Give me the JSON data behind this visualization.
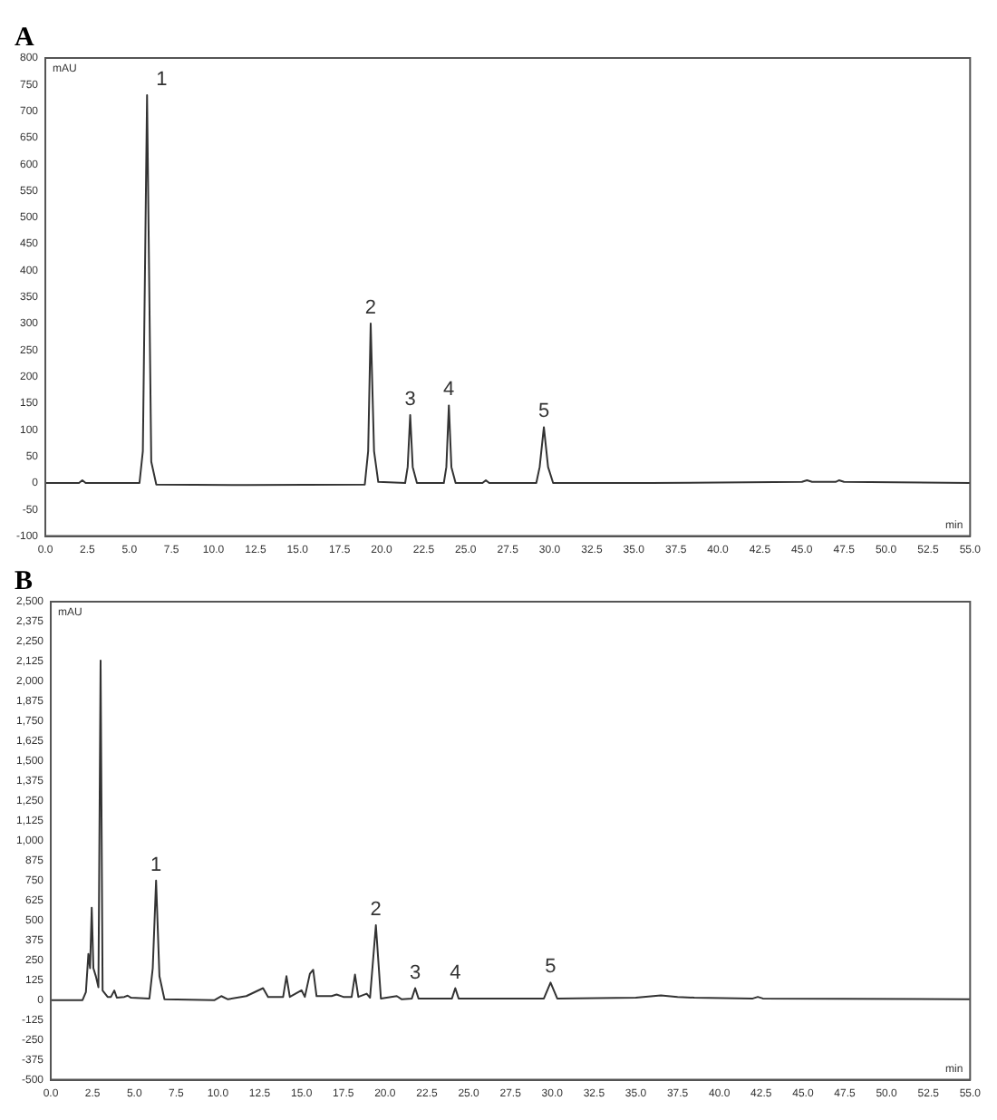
{
  "chart_data": [
    {
      "type": "line",
      "title": "A",
      "xlabel": "min",
      "ylabel": "mAU",
      "color": "#333333",
      "grid": false,
      "legend": false,
      "x": [
        0,
        2.0,
        2.2,
        2.4,
        5.6,
        5.8,
        6.05,
        6.3,
        6.6,
        12,
        19.0,
        19.2,
        19.35,
        19.55,
        19.8,
        21.4,
        21.55,
        21.7,
        21.85,
        22.1,
        23.7,
        23.85,
        24.0,
        24.15,
        24.4,
        26.0,
        26.2,
        26.4,
        29.2,
        29.4,
        29.65,
        29.9,
        30.2,
        36,
        45,
        45.3,
        45.6,
        47,
        47.2,
        47.5,
        55
      ],
      "values": [
        0,
        0,
        5,
        0,
        0,
        60,
        730,
        40,
        -3,
        -4,
        -3,
        60,
        300,
        60,
        2,
        0,
        30,
        128,
        30,
        0,
        0,
        30,
        146,
        30,
        0,
        0,
        5,
        0,
        0,
        30,
        105,
        30,
        0,
        0,
        2,
        5,
        2,
        2,
        5,
        2,
        0
      ],
      "xlim": [
        0,
        55
      ],
      "xticks": [
        {
          "value": 0,
          "label": "0.0"
        },
        2.5,
        {
          "value": 5,
          "label": "5.0"
        },
        7.5,
        {
          "value": 10,
          "label": "10.0"
        },
        12.5,
        {
          "value": 15,
          "label": "15.0"
        },
        17.5,
        {
          "value": 20,
          "label": "20.0"
        },
        22.5,
        {
          "value": 25,
          "label": "25.0"
        },
        27.5,
        {
          "value": 30,
          "label": "30.0"
        },
        32.5,
        {
          "value": 35,
          "label": "35.0"
        },
        37.5,
        {
          "value": 40,
          "label": "40.0"
        },
        42.5,
        {
          "value": 45,
          "label": "45.0"
        },
        47.5,
        {
          "value": 50,
          "label": "50.0"
        },
        52.5,
        {
          "value": 55,
          "label": "55.0"
        }
      ],
      "ylim": [
        -100,
        800
      ],
      "yticks": [
        -100,
        -50,
        0,
        50,
        100,
        150,
        200,
        250,
        300,
        350,
        400,
        450,
        500,
        550,
        600,
        650,
        700,
        750,
        800
      ],
      "annotations": [
        {
          "text": "1",
          "x": 6.05,
          "y": 730
        },
        {
          "text": "2",
          "x": 19.35,
          "y": 300
        },
        {
          "text": "3",
          "x": 21.7,
          "y": 128
        },
        {
          "text": "4",
          "x": 24.0,
          "y": 146
        },
        {
          "text": "5",
          "x": 29.65,
          "y": 105
        }
      ]
    },
    {
      "type": "line",
      "title": "B",
      "xlabel": "min",
      "ylabel": "mAU",
      "color": "#333333",
      "grid": false,
      "legend": false,
      "x": [
        0,
        1.9,
        2.1,
        2.25,
        2.35,
        2.45,
        2.55,
        2.7,
        2.85,
        2.98,
        3.1,
        3.4,
        3.6,
        3.8,
        3.95,
        4.4,
        4.6,
        4.8,
        5.9,
        6.1,
        6.3,
        6.5,
        6.8,
        9.8,
        10.2,
        10.6,
        11.7,
        12.7,
        13.0,
        13.9,
        14.1,
        14.3,
        15.0,
        15.2,
        15.5,
        15.7,
        15.9,
        16.8,
        17.1,
        17.5,
        18.0,
        18.2,
        18.4,
        18.9,
        19.1,
        19.45,
        19.75,
        20.7,
        21.0,
        21.6,
        21.8,
        22.0,
        24.0,
        24.2,
        24.4,
        29.5,
        29.9,
        30.3,
        35,
        36.5,
        37.5,
        38.5,
        42,
        42.3,
        42.6,
        55
      ],
      "values": [
        0,
        0,
        50,
        290,
        200,
        580,
        200,
        148,
        80,
        2130,
        60,
        20,
        20,
        60,
        15,
        20,
        28,
        15,
        10,
        200,
        750,
        150,
        5,
        0,
        25,
        5,
        25,
        75,
        20,
        20,
        150,
        20,
        62,
        20,
        165,
        190,
        25,
        25,
        35,
        20,
        20,
        160,
        20,
        40,
        15,
        470,
        10,
        25,
        5,
        10,
        75,
        10,
        10,
        75,
        10,
        10,
        110,
        10,
        15,
        30,
        20,
        15,
        10,
        20,
        10,
        5
      ],
      "xlim": [
        0,
        55
      ],
      "xticks": [
        {
          "value": 0,
          "label": "0.0"
        },
        2.5,
        {
          "value": 5,
          "label": "5.0"
        },
        7.5,
        {
          "value": 10,
          "label": "10.0"
        },
        12.5,
        {
          "value": 15,
          "label": "15.0"
        },
        17.5,
        {
          "value": 20,
          "label": "20.0"
        },
        22.5,
        {
          "value": 25,
          "label": "25.0"
        },
        27.5,
        {
          "value": 30,
          "label": "30.0"
        },
        32.5,
        {
          "value": 35,
          "label": "35.0"
        },
        37.5,
        {
          "value": 40,
          "label": "40.0"
        },
        42.5,
        {
          "value": 45,
          "label": "45.0"
        },
        47.5,
        {
          "value": 50,
          "label": "50.0"
        },
        52.5,
        {
          "value": 55,
          "label": "55.0"
        }
      ],
      "ylim": [
        -500,
        2500
      ],
      "yticks": [
        {
          "value": -500,
          "label": "-500"
        },
        {
          "value": -375,
          "label": "-375"
        },
        {
          "value": -250,
          "label": "-250"
        },
        {
          "value": -125,
          "label": "-125"
        },
        0,
        125,
        250,
        375,
        500,
        625,
        750,
        875,
        {
          "value": 1000,
          "label": "1,000"
        },
        {
          "value": 1125,
          "label": "1,125"
        },
        {
          "value": 1250,
          "label": "1,250"
        },
        {
          "value": 1375,
          "label": "1,375"
        },
        {
          "value": 1500,
          "label": "1,500"
        },
        {
          "value": 1625,
          "label": "1,625"
        },
        {
          "value": 1750,
          "label": "1,750"
        },
        {
          "value": 1875,
          "label": "1,875"
        },
        {
          "value": 2000,
          "label": "2,000"
        },
        {
          "value": 2125,
          "label": "2,125"
        },
        {
          "value": 2250,
          "label": "2,250"
        },
        {
          "value": 2375,
          "label": "2,375"
        },
        {
          "value": 2500,
          "label": "2,500"
        }
      ],
      "annotations": [
        {
          "text": "1",
          "x": 6.3,
          "y": 750
        },
        {
          "text": "2",
          "x": 19.45,
          "y": 470
        },
        {
          "text": "3",
          "x": 21.8,
          "y": 75
        },
        {
          "text": "4",
          "x": 24.2,
          "y": 75
        },
        {
          "text": "5",
          "x": 29.9,
          "y": 110
        }
      ]
    }
  ]
}
